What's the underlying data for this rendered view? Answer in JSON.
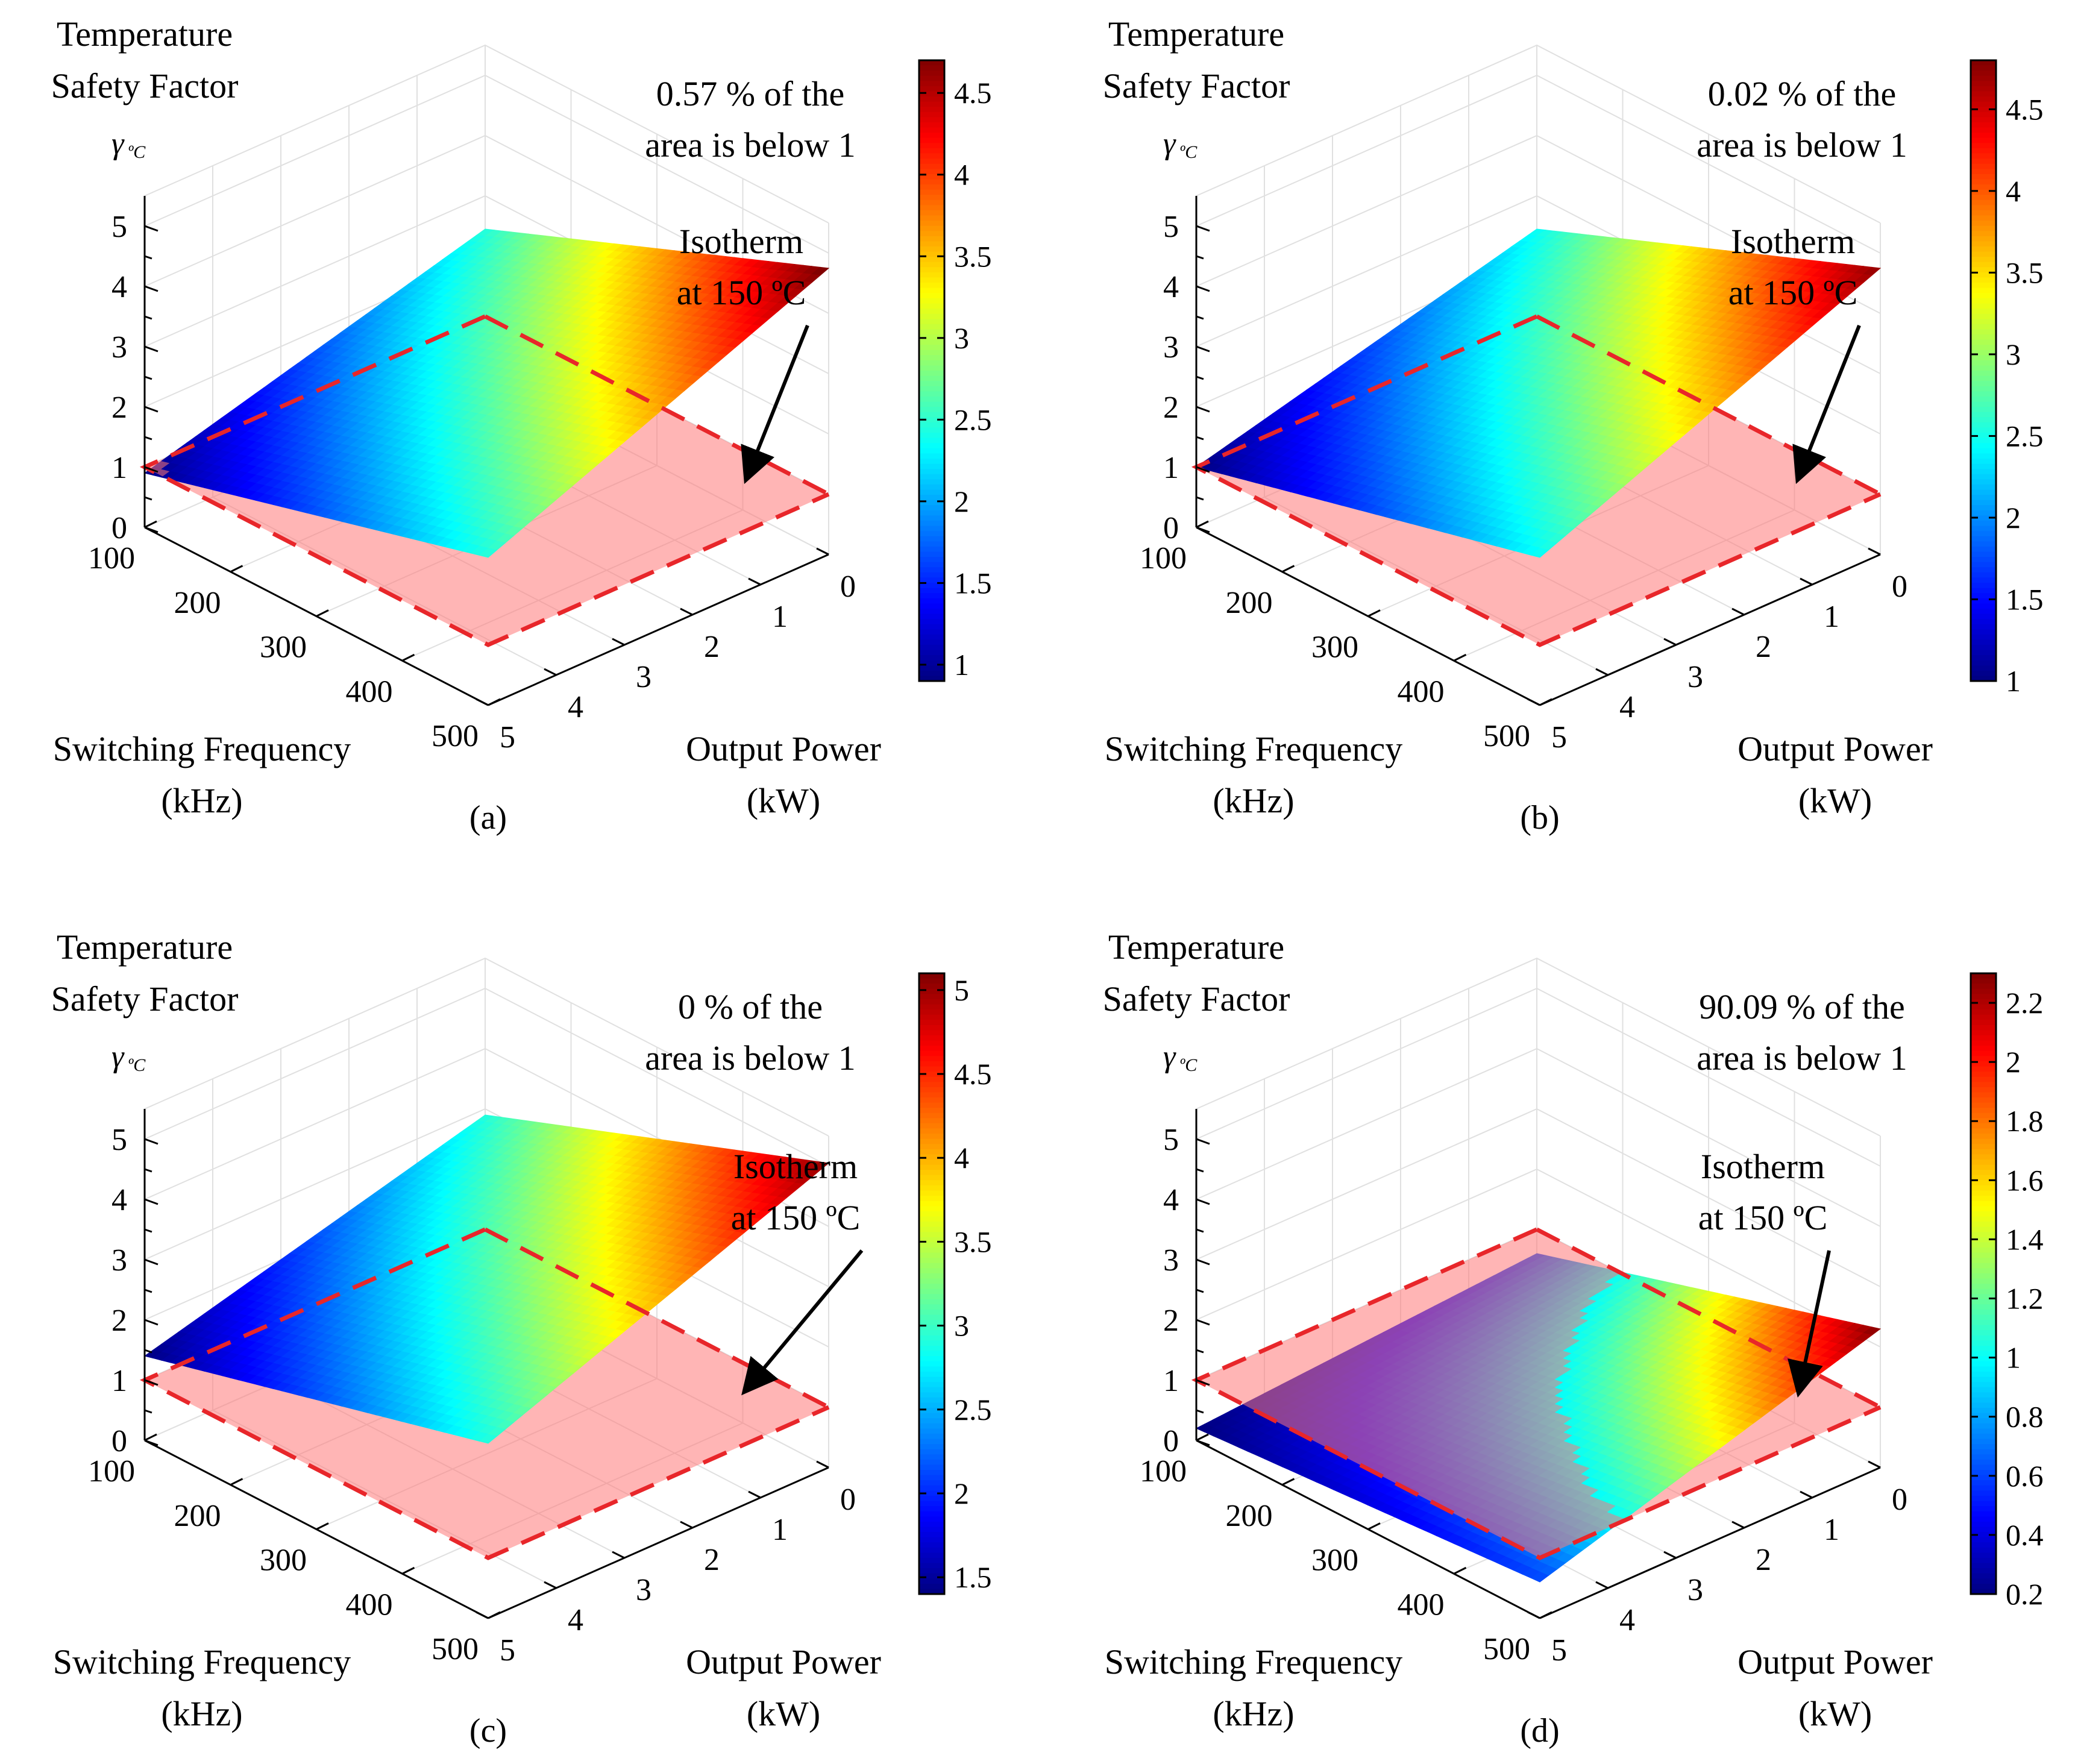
{
  "chart_data": [
    {
      "type": "surface3d",
      "panel_label": "(a)",
      "title_lines": [
        "Temperature",
        "Safety Factor"
      ],
      "zlabel_symbol": "γ",
      "zlabel_subscript": "ºC",
      "xlabel_lines": [
        "Switching Frequency",
        "(kHz)"
      ],
      "ylabel_lines": [
        "Output Power",
        "(kW)"
      ],
      "x_ticks": [
        "100",
        "200",
        "300",
        "400",
        "500"
      ],
      "y_ticks": [
        "0",
        "1",
        "2",
        "3",
        "4",
        "5"
      ],
      "z_ticks": [
        "0",
        "1",
        "2",
        "3",
        "4",
        "5"
      ],
      "xlim": [
        100,
        500
      ],
      "ylim": [
        0,
        5
      ],
      "zlim": [
        0,
        5.5
      ],
      "corners": {
        "f100_p0": 2.45,
        "f500_p0": 4.75,
        "f100_p5": 0.9,
        "f500_p5": 2.45
      },
      "isotherm_level": 1,
      "note_lines": [
        "0.57 % of the",
        "area is below 1"
      ],
      "arrow_label_lines": [
        "Isotherm",
        "at 150 ºC"
      ],
      "colorbar": {
        "min": 0.9,
        "max": 4.7,
        "ticks": [
          "1",
          "1.5",
          "2",
          "2.5",
          "3",
          "3.5",
          "4",
          "4.5"
        ],
        "tick_values": [
          1,
          1.5,
          2,
          2.5,
          3,
          3.5,
          4,
          4.5
        ]
      }
    },
    {
      "type": "surface3d",
      "panel_label": "(b)",
      "title_lines": [
        "Temperature",
        "Safety Factor"
      ],
      "zlabel_symbol": "γ",
      "zlabel_subscript": "ºC",
      "xlabel_lines": [
        "Switching Frequency",
        "(kHz)"
      ],
      "ylabel_lines": [
        "Output Power",
        "(kW)"
      ],
      "x_ticks": [
        "100",
        "200",
        "300",
        "400",
        "500"
      ],
      "y_ticks": [
        "0",
        "1",
        "2",
        "3",
        "4",
        "5"
      ],
      "z_ticks": [
        "0",
        "1",
        "2",
        "3",
        "4",
        "5"
      ],
      "xlim": [
        100,
        500
      ],
      "ylim": [
        0,
        5
      ],
      "zlim": [
        0,
        5.5
      ],
      "corners": {
        "f100_p0": 2.45,
        "f500_p0": 4.75,
        "f100_p5": 1.0,
        "f500_p5": 2.45
      },
      "isotherm_level": 1,
      "note_lines": [
        "0.02 % of the",
        "area is below 1"
      ],
      "arrow_label_lines": [
        "Isotherm",
        "at 150 ºC"
      ],
      "colorbar": {
        "min": 1.0,
        "max": 4.8,
        "ticks": [
          "1",
          "1.5",
          "2",
          "2.5",
          "3",
          "3.5",
          "4",
          "4.5"
        ],
        "tick_values": [
          1,
          1.5,
          2,
          2.5,
          3,
          3.5,
          4,
          4.5
        ]
      }
    },
    {
      "type": "surface3d",
      "panel_label": "(c)",
      "title_lines": [
        "Temperature",
        "Safety Factor"
      ],
      "zlabel_symbol": "γ",
      "zlabel_subscript": "ºC",
      "xlabel_lines": [
        "Switching Frequency",
        "(kHz)"
      ],
      "ylabel_lines": [
        "Output Power",
        "(kW)"
      ],
      "x_ticks": [
        "100",
        "200",
        "300",
        "400",
        "500"
      ],
      "y_ticks": [
        "0",
        "1",
        "2",
        "3",
        "4",
        "5"
      ],
      "z_ticks": [
        "0",
        "1",
        "2",
        "3",
        "4",
        "5"
      ],
      "xlim": [
        100,
        500
      ],
      "ylim": [
        0,
        5
      ],
      "zlim": [
        0,
        5.5
      ],
      "corners": {
        "f100_p0": 2.9,
        "f500_p0": 5.05,
        "f100_p5": 1.4,
        "f500_p5": 2.9
      },
      "isotherm_level": 1,
      "note_lines": [
        "0 % of the",
        "area is below 1"
      ],
      "arrow_label_lines": [
        "Isotherm",
        "at 150 ºC"
      ],
      "colorbar": {
        "min": 1.4,
        "max": 5.1,
        "ticks": [
          "1.5",
          "2",
          "2.5",
          "3",
          "3.5",
          "4",
          "4.5",
          "5"
        ],
        "tick_values": [
          1.5,
          2,
          2.5,
          3,
          3.5,
          4,
          4.5,
          5
        ]
      }
    },
    {
      "type": "surface3d",
      "panel_label": "(d)",
      "title_lines": [
        "Temperature",
        "Safety Factor"
      ],
      "zlabel_symbol": "γ",
      "zlabel_subscript": "ºC",
      "xlabel_lines": [
        "Switching Frequency",
        "(kHz)"
      ],
      "ylabel_lines": [
        "Output Power",
        "(kW)"
      ],
      "x_ticks": [
        "100",
        "200",
        "300",
        "400",
        "500"
      ],
      "y_ticks": [
        "0",
        "1",
        "2",
        "3",
        "4",
        "5"
      ],
      "z_ticks": [
        "0",
        "1",
        "2",
        "3",
        "4",
        "5"
      ],
      "xlim": [
        100,
        500
      ],
      "ylim": [
        0,
        5
      ],
      "zlim": [
        0,
        5.5
      ],
      "corners": {
        "f100_p0": 0.6,
        "f500_p0": 2.3,
        "f100_p5": 0.2,
        "f500_p5": 0.6
      },
      "isotherm_level": 1,
      "note_lines": [
        "90.09 % of the",
        "area is below 1"
      ],
      "arrow_label_lines": [
        "Isotherm",
        "at 150 ºC"
      ],
      "colorbar": {
        "min": 0.2,
        "max": 2.3,
        "ticks": [
          "0.2",
          "0.4",
          "0.6",
          "0.8",
          "1",
          "1.2",
          "1.4",
          "1.6",
          "1.8",
          "2",
          "2.2"
        ],
        "tick_values": [
          0.2,
          0.4,
          0.6,
          0.8,
          1,
          1.2,
          1.4,
          1.6,
          1.8,
          2,
          2.2
        ]
      }
    }
  ]
}
